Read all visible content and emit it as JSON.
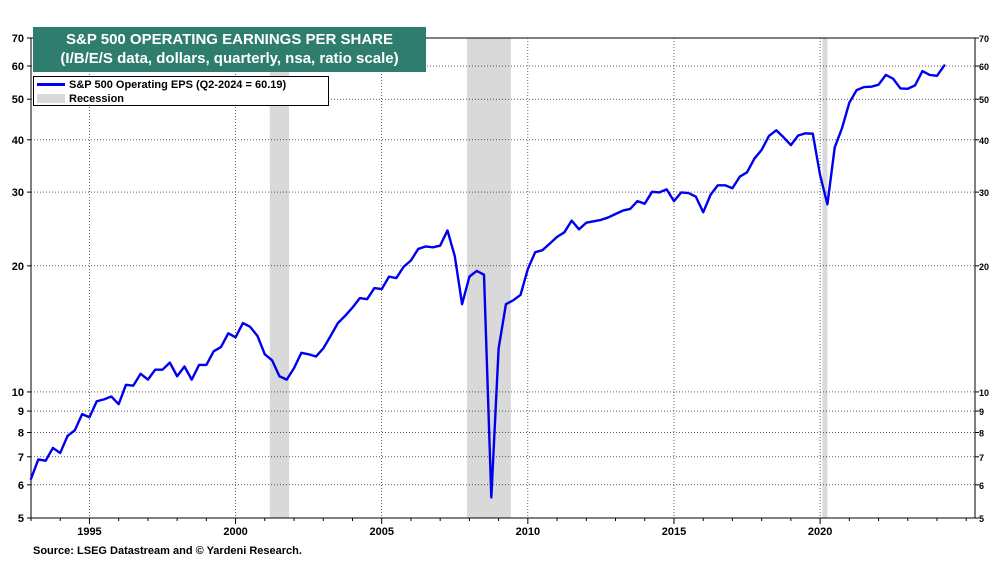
{
  "title": {
    "line1": "S&P 500 OPERATING EARNINGS PER SHARE",
    "line2": "(I/B/E/S data, dollars, quarterly, nsa, ratio scale)"
  },
  "legend": {
    "series_label": "S&P 500 Operating EPS (Q2-2024 = 60.19)",
    "recession_label": "Recession"
  },
  "source": "Source: LSEG Datastream and © Yardeni Research.",
  "colors": {
    "series": "#0000ee",
    "recession": "#d9d9d9",
    "title_bg": "#2e7d6e"
  },
  "chart_data": {
    "type": "line",
    "yscale": "log",
    "ylim": [
      5,
      70
    ],
    "xlim": [
      1993.0,
      2025.3
    ],
    "grid": true,
    "legend_position": "top-left",
    "y_ticks": [
      5,
      6,
      7,
      8,
      9,
      10,
      20,
      30,
      40,
      50,
      60,
      70
    ],
    "x_ticks": [
      1995,
      2000,
      2005,
      2010,
      2015,
      2020
    ],
    "recessions": [
      [
        2001.17,
        2001.83
      ],
      [
        2007.92,
        2009.42
      ],
      [
        2020.08,
        2020.25
      ]
    ],
    "series": [
      {
        "name": "S&P 500 Operating EPS (Q2-2024 = 60.19)",
        "x": [
          1993.0,
          1993.25,
          1993.5,
          1993.75,
          1994.0,
          1994.25,
          1994.5,
          1994.75,
          1995.0,
          1995.25,
          1995.5,
          1995.75,
          1996.0,
          1996.25,
          1996.5,
          1996.75,
          1997.0,
          1997.25,
          1997.5,
          1997.75,
          1998.0,
          1998.25,
          1998.5,
          1998.75,
          1999.0,
          1999.25,
          1999.5,
          1999.75,
          2000.0,
          2000.25,
          2000.5,
          2000.75,
          2001.0,
          2001.25,
          2001.5,
          2001.75,
          2002.0,
          2002.25,
          2002.5,
          2002.75,
          2003.0,
          2003.25,
          2003.5,
          2003.75,
          2004.0,
          2004.25,
          2004.5,
          2004.75,
          2005.0,
          2005.25,
          2005.5,
          2005.75,
          2006.0,
          2006.25,
          2006.5,
          2006.75,
          2007.0,
          2007.25,
          2007.5,
          2007.75,
          2008.0,
          2008.25,
          2008.5,
          2008.75,
          2009.0,
          2009.25,
          2009.5,
          2009.75,
          2010.0,
          2010.25,
          2010.5,
          2010.75,
          2011.0,
          2011.25,
          2011.5,
          2011.75,
          2012.0,
          2012.25,
          2012.5,
          2012.75,
          2013.0,
          2013.25,
          2013.5,
          2013.75,
          2014.0,
          2014.25,
          2014.5,
          2014.75,
          2015.0,
          2015.25,
          2015.5,
          2015.75,
          2016.0,
          2016.25,
          2016.5,
          2016.75,
          2017.0,
          2017.25,
          2017.5,
          2017.75,
          2018.0,
          2018.25,
          2018.5,
          2018.75,
          2019.0,
          2019.25,
          2019.5,
          2019.75,
          2020.0,
          2020.25,
          2020.5,
          2020.75,
          2021.0,
          2021.25,
          2021.5,
          2021.75,
          2022.0,
          2022.25,
          2022.5,
          2022.75,
          2023.0,
          2023.25,
          2023.5,
          2023.75,
          2024.0,
          2024.25
        ],
        "values": [
          6.2,
          6.9,
          6.85,
          7.35,
          7.15,
          7.85,
          8.1,
          8.85,
          8.7,
          9.5,
          9.6,
          9.75,
          9.35,
          10.4,
          10.35,
          11.05,
          10.7,
          11.3,
          11.3,
          11.75,
          10.9,
          11.5,
          10.7,
          11.6,
          11.6,
          12.5,
          12.8,
          13.8,
          13.5,
          14.6,
          14.3,
          13.6,
          12.3,
          11.9,
          10.9,
          10.7,
          11.4,
          12.4,
          12.3,
          12.15,
          12.7,
          13.6,
          14.6,
          15.2,
          15.9,
          16.75,
          16.65,
          17.7,
          17.6,
          18.85,
          18.7,
          19.9,
          20.6,
          21.95,
          22.25,
          22.15,
          22.35,
          24.3,
          21.1,
          16.2,
          18.85,
          19.45,
          19.05,
          5.6,
          12.7,
          16.2,
          16.55,
          17.05,
          19.65,
          21.55,
          21.8,
          22.6,
          23.45,
          24.05,
          25.65,
          24.45,
          25.35,
          25.55,
          25.75,
          26.1,
          26.6,
          27.1,
          27.35,
          28.55,
          28.15,
          30.05,
          29.95,
          30.45,
          28.55,
          29.95,
          29.85,
          29.25,
          26.85,
          29.55,
          31.15,
          31.15,
          30.65,
          32.65,
          33.45,
          36.05,
          37.85,
          40.85,
          42.15,
          40.55,
          38.85,
          40.95,
          41.45,
          41.35,
          32.95,
          28.05,
          38.35,
          42.65,
          49.05,
          52.55,
          53.45,
          53.55,
          54.15,
          57.15,
          55.95,
          53.05,
          52.95,
          53.95,
          58.35,
          57.15,
          56.85,
          60.19
        ]
      }
    ]
  }
}
